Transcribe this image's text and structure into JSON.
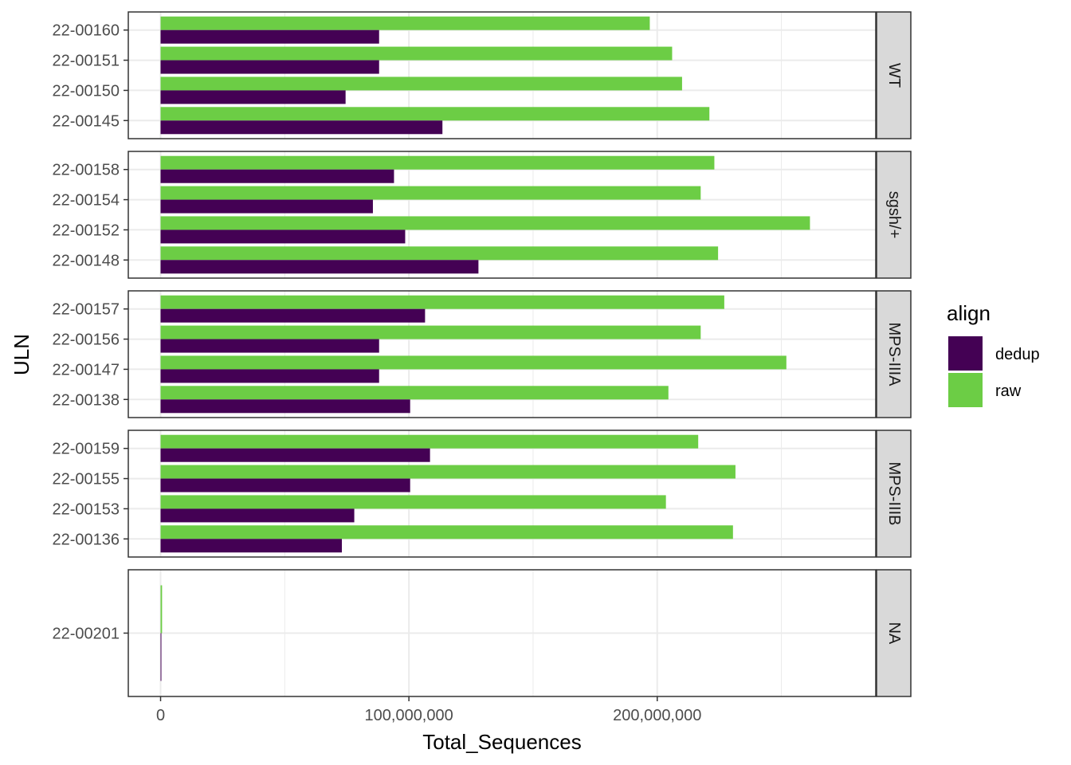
{
  "chart_data": {
    "type": "bar",
    "orientation": "horizontal",
    "xlabel": "Total_Sequences",
    "ylabel": "ULN",
    "xlim": [
      -13000000,
      288000000
    ],
    "x_ticks": [
      0,
      100000000,
      200000000
    ],
    "x_tick_labels": [
      "0",
      "100,000,000",
      "200,000,000"
    ],
    "grid": true,
    "legend": {
      "title": "align",
      "position": "right",
      "entries": [
        {
          "name": "dedup",
          "color": "#440154"
        },
        {
          "name": "raw",
          "color": "#6ccd45"
        }
      ]
    },
    "series_names": [
      "dedup",
      "raw"
    ],
    "facets": [
      {
        "label": "WT",
        "rows": [
          {
            "category": "22-00160",
            "dedup": 88000000,
            "raw": 197000000
          },
          {
            "category": "22-00151",
            "dedup": 88000000,
            "raw": 206000000
          },
          {
            "category": "22-00150",
            "dedup": 74500000,
            "raw": 210000000
          },
          {
            "category": "22-00145",
            "dedup": 113500000,
            "raw": 221000000
          }
        ]
      },
      {
        "label": "sgsh/+",
        "rows": [
          {
            "category": "22-00158",
            "dedup": 94000000,
            "raw": 223000000
          },
          {
            "category": "22-00154",
            "dedup": 85500000,
            "raw": 217500000
          },
          {
            "category": "22-00152",
            "dedup": 98500000,
            "raw": 261500000
          },
          {
            "category": "22-00148",
            "dedup": 128000000,
            "raw": 224500000
          }
        ]
      },
      {
        "label": "MPS-IIIA",
        "rows": [
          {
            "category": "22-00157",
            "dedup": 106500000,
            "raw": 227000000
          },
          {
            "category": "22-00156",
            "dedup": 88000000,
            "raw": 217500000
          },
          {
            "category": "22-00147",
            "dedup": 88000000,
            "raw": 252000000
          },
          {
            "category": "22-00138",
            "dedup": 100500000,
            "raw": 204500000
          }
        ]
      },
      {
        "label": "MPS-IIIB",
        "rows": [
          {
            "category": "22-00159",
            "dedup": 108500000,
            "raw": 216500000
          },
          {
            "category": "22-00155",
            "dedup": 100500000,
            "raw": 231500000
          },
          {
            "category": "22-00153",
            "dedup": 78000000,
            "raw": 203500000
          },
          {
            "category": "22-00136",
            "dedup": 73000000,
            "raw": 230500000
          }
        ]
      },
      {
        "label": "NA",
        "rows": [
          {
            "category": "22-00201",
            "dedup": 300000,
            "raw": 600000
          }
        ]
      }
    ]
  }
}
